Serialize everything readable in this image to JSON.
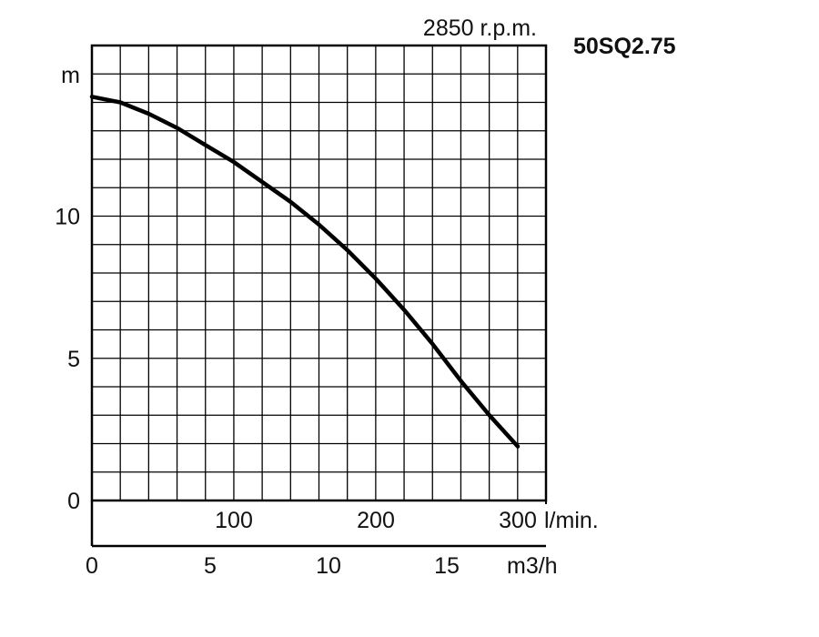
{
  "chart_data": {
    "type": "line",
    "title": "50SQ2.75",
    "subtitle": "2850 r.p.m.",
    "ylabel": "m",
    "xlabel_flow_lmin": "l/min.",
    "xlabel_flow_m3h": "m3/h",
    "ylim": [
      0,
      15
    ],
    "xlim_lmin": [
      0,
      320
    ],
    "y_ticks": [
      {
        "value": 0,
        "label": "0"
      },
      {
        "value": 5,
        "label": "5"
      },
      {
        "value": 10,
        "label": "10"
      }
    ],
    "x_ticks_lmin": [
      {
        "value": 100,
        "label": "100"
      },
      {
        "value": 200,
        "label": "200"
      },
      {
        "value": 300,
        "label": "300"
      }
    ],
    "x_ticks_m3h": [
      {
        "value": 0,
        "label": "0"
      },
      {
        "value": 5,
        "label": "5"
      },
      {
        "value": 10,
        "label": "10"
      },
      {
        "value": 15,
        "label": "15"
      }
    ],
    "grid": true,
    "series": [
      {
        "x": [
          0,
          20,
          40,
          60,
          80,
          100,
          120,
          140,
          160,
          180,
          200,
          220,
          240,
          260,
          280,
          300
        ],
        "y": [
          14.2,
          14.0,
          13.6,
          13.1,
          12.5,
          11.9,
          11.2,
          10.5,
          9.7,
          8.8,
          7.8,
          6.7,
          5.5,
          4.2,
          3.0,
          1.9
        ],
        "color": "#000000"
      }
    ]
  }
}
